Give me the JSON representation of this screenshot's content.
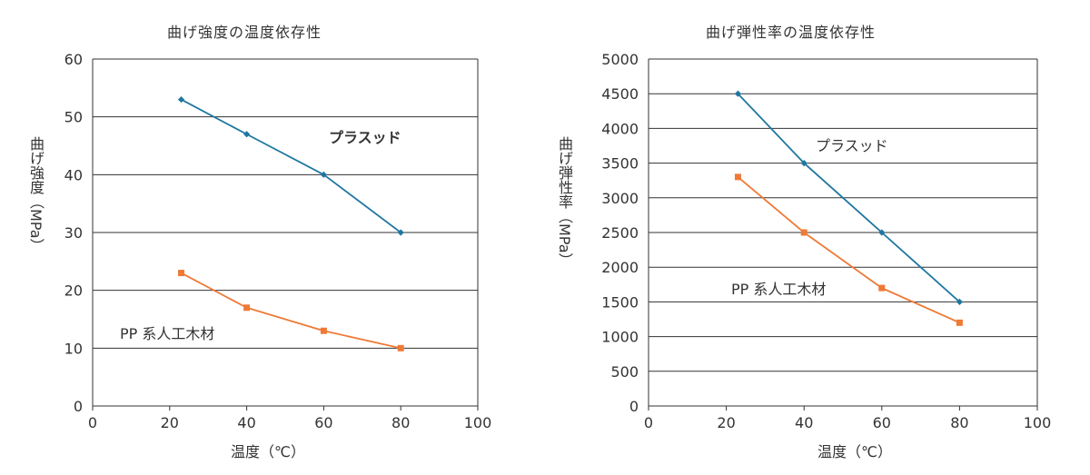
{
  "colors": {
    "prasud": "#1f77a0",
    "pp_wood": "#ee7a36",
    "grid": "#333333",
    "text": "#333333"
  },
  "chart_data": [
    {
      "type": "line",
      "title": "曲げ強度の温度依存性",
      "xlabel": "温度（℃）",
      "ylabel": "曲げ強度（MPa）",
      "xlim": [
        0,
        100
      ],
      "ylim": [
        0,
        60
      ],
      "xticks": [
        0,
        20,
        40,
        60,
        80,
        100
      ],
      "yticks": [
        0,
        10,
        20,
        30,
        40,
        50,
        60
      ],
      "grid": "horizontal",
      "series": [
        {
          "name": "プラスッド",
          "color": "#1f77a0",
          "marker": "diamond",
          "label_bold": true,
          "x": [
            23,
            40,
            60,
            80
          ],
          "values": [
            53,
            47,
            40,
            30
          ]
        },
        {
          "name": "PP 系人工木材",
          "color": "#ee7a36",
          "marker": "square",
          "label_bold": false,
          "x": [
            23,
            40,
            60,
            80
          ],
          "values": [
            23,
            17,
            13,
            10
          ]
        }
      ]
    },
    {
      "type": "line",
      "title": "曲げ弾性率の温度依存性",
      "xlabel": "温度（℃）",
      "ylabel": "曲げ弾性率（MPa）",
      "xlim": [
        0,
        100
      ],
      "ylim": [
        0,
        5000
      ],
      "xticks": [
        0,
        20,
        40,
        60,
        80,
        100
      ],
      "yticks": [
        0,
        500,
        1000,
        1500,
        2000,
        2500,
        3000,
        3500,
        4000,
        4500,
        5000
      ],
      "grid": "horizontal",
      "series": [
        {
          "name": "プラスッド",
          "color": "#1f77a0",
          "marker": "diamond",
          "label_bold": false,
          "x": [
            23,
            40,
            60,
            80
          ],
          "values": [
            4500,
            3500,
            2500,
            1500
          ]
        },
        {
          "name": "PP 系人工木材",
          "color": "#ee7a36",
          "marker": "square",
          "label_bold": false,
          "x": [
            23,
            40,
            60,
            80
          ],
          "values": [
            3300,
            2500,
            1700,
            1200
          ]
        }
      ]
    }
  ]
}
